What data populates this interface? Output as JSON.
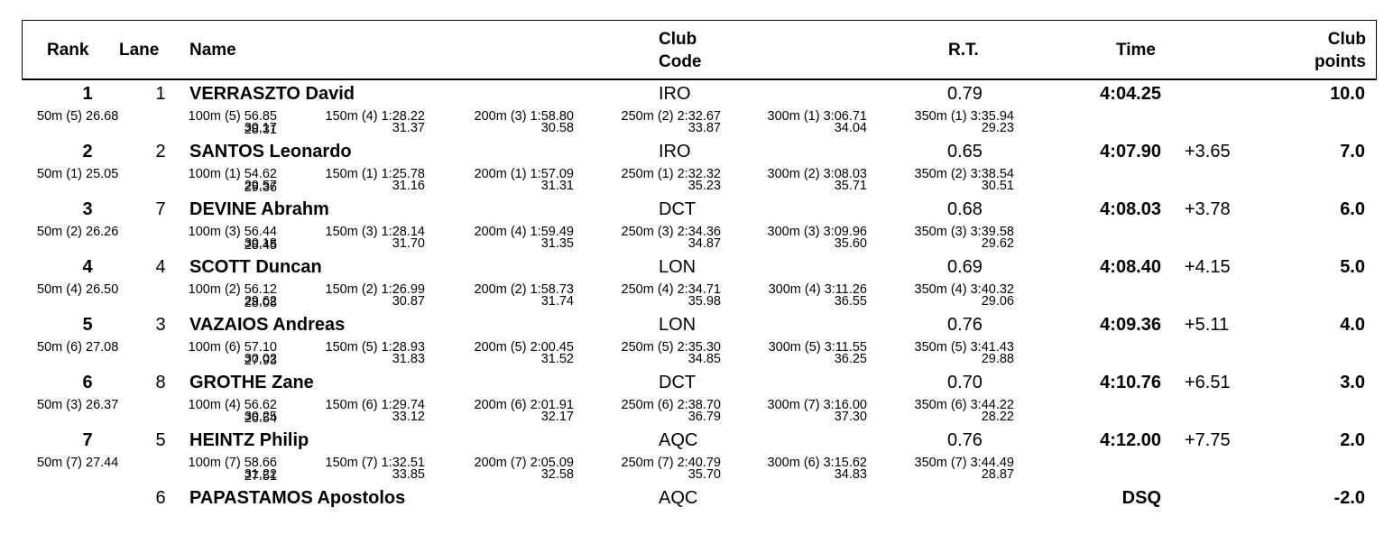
{
  "headers": {
    "rank": "Rank",
    "lane": "Lane",
    "name": "Name",
    "club_line1": "Club",
    "club_line2": "Code",
    "rt": "R.T.",
    "time": "Time",
    "points_line1": "Club",
    "points_line2": "points"
  },
  "results": [
    {
      "rank": "1",
      "lane": "1",
      "name": "VERRASZTO David",
      "club": "IRO",
      "rt": "0.79",
      "time": "4:04.25",
      "behind": "",
      "points": "10.0",
      "splits": [
        {
          "label": "50m",
          "place": "(5)",
          "cum": "26.68",
          "lap": ""
        },
        {
          "label": "100m",
          "place": "(5)",
          "cum": "56.85",
          "lap": "30.17"
        },
        {
          "label": "150m",
          "place": "(4)",
          "cum": "1:28.22",
          "lap": "31.37"
        },
        {
          "label": "200m",
          "place": "(3)",
          "cum": "1:58.80",
          "lap": "30.58"
        },
        {
          "label": "250m",
          "place": "(2)",
          "cum": "2:32.67",
          "lap": "33.87"
        },
        {
          "label": "300m",
          "place": "(1)",
          "cum": "3:06.71",
          "lap": "34.04"
        },
        {
          "label": "350m",
          "place": "(1)",
          "cum": "3:35.94",
          "lap": "29.23"
        }
      ],
      "final_lap": "28.31"
    },
    {
      "rank": "2",
      "lane": "2",
      "name": "SANTOS Leonardo",
      "club": "IRO",
      "rt": "0.65",
      "time": "4:07.90",
      "behind": "+3.65",
      "points": "7.0",
      "splits": [
        {
          "label": "50m",
          "place": "(1)",
          "cum": "25.05",
          "lap": ""
        },
        {
          "label": "100m",
          "place": "(1)",
          "cum": "54.62",
          "lap": "29.57"
        },
        {
          "label": "150m",
          "place": "(1)",
          "cum": "1:25.78",
          "lap": "31.16"
        },
        {
          "label": "200m",
          "place": "(1)",
          "cum": "1:57.09",
          "lap": "31.31"
        },
        {
          "label": "250m",
          "place": "(1)",
          "cum": "2:32.32",
          "lap": "35.23"
        },
        {
          "label": "300m",
          "place": "(2)",
          "cum": "3:08.03",
          "lap": "35.71"
        },
        {
          "label": "350m",
          "place": "(2)",
          "cum": "3:38.54",
          "lap": "30.51"
        }
      ],
      "final_lap": "29.36"
    },
    {
      "rank": "3",
      "lane": "7",
      "name": "DEVINE Abrahm",
      "club": "DCT",
      "rt": "0.68",
      "time": "4:08.03",
      "behind": "+3.78",
      "points": "6.0",
      "splits": [
        {
          "label": "50m",
          "place": "(2)",
          "cum": "26.26",
          "lap": ""
        },
        {
          "label": "100m",
          "place": "(3)",
          "cum": "56.44",
          "lap": "30.18"
        },
        {
          "label": "150m",
          "place": "(3)",
          "cum": "1:28.14",
          "lap": "31.70"
        },
        {
          "label": "200m",
          "place": "(4)",
          "cum": "1:59.49",
          "lap": "31.35"
        },
        {
          "label": "250m",
          "place": "(3)",
          "cum": "2:34.36",
          "lap": "34.87"
        },
        {
          "label": "300m",
          "place": "(3)",
          "cum": "3:09.96",
          "lap": "35.60"
        },
        {
          "label": "350m",
          "place": "(3)",
          "cum": "3:39.58",
          "lap": "29.62"
        }
      ],
      "final_lap": "28.45"
    },
    {
      "rank": "4",
      "lane": "4",
      "name": "SCOTT Duncan",
      "club": "LON",
      "rt": "0.69",
      "time": "4:08.40",
      "behind": "+4.15",
      "points": "5.0",
      "splits": [
        {
          "label": "50m",
          "place": "(4)",
          "cum": "26.50",
          "lap": ""
        },
        {
          "label": "100m",
          "place": "(2)",
          "cum": "56.12",
          "lap": "29.62"
        },
        {
          "label": "150m",
          "place": "(2)",
          "cum": "1:26.99",
          "lap": "30.87"
        },
        {
          "label": "200m",
          "place": "(2)",
          "cum": "1:58.73",
          "lap": "31.74"
        },
        {
          "label": "250m",
          "place": "(4)",
          "cum": "2:34.71",
          "lap": "35.98"
        },
        {
          "label": "300m",
          "place": "(4)",
          "cum": "3:11.26",
          "lap": "36.55"
        },
        {
          "label": "350m",
          "place": "(4)",
          "cum": "3:40.32",
          "lap": "29.06"
        }
      ],
      "final_lap": "28.08"
    },
    {
      "rank": "5",
      "lane": "3",
      "name": "VAZAIOS Andreas",
      "club": "LON",
      "rt": "0.76",
      "time": "4:09.36",
      "behind": "+5.11",
      "points": "4.0",
      "splits": [
        {
          "label": "50m",
          "place": "(6)",
          "cum": "27.08",
          "lap": ""
        },
        {
          "label": "100m",
          "place": "(6)",
          "cum": "57.10",
          "lap": "30.02"
        },
        {
          "label": "150m",
          "place": "(5)",
          "cum": "1:28.93",
          "lap": "31.83"
        },
        {
          "label": "200m",
          "place": "(5)",
          "cum": "2:00.45",
          "lap": "31.52"
        },
        {
          "label": "250m",
          "place": "(5)",
          "cum": "2:35.30",
          "lap": "34.85"
        },
        {
          "label": "300m",
          "place": "(5)",
          "cum": "3:11.55",
          "lap": "36.25"
        },
        {
          "label": "350m",
          "place": "(5)",
          "cum": "3:41.43",
          "lap": "29.88"
        }
      ],
      "final_lap": "27.93"
    },
    {
      "rank": "6",
      "lane": "8",
      "name": "GROTHE Zane",
      "club": "DCT",
      "rt": "0.70",
      "time": "4:10.76",
      "behind": "+6.51",
      "points": "3.0",
      "splits": [
        {
          "label": "50m",
          "place": "(3)",
          "cum": "26.37",
          "lap": ""
        },
        {
          "label": "100m",
          "place": "(4)",
          "cum": "56.62",
          "lap": "30.25"
        },
        {
          "label": "150m",
          "place": "(6)",
          "cum": "1:29.74",
          "lap": "33.12"
        },
        {
          "label": "200m",
          "place": "(6)",
          "cum": "2:01.91",
          "lap": "32.17"
        },
        {
          "label": "250m",
          "place": "(6)",
          "cum": "2:38.70",
          "lap": "36.79"
        },
        {
          "label": "300m",
          "place": "(7)",
          "cum": "3:16.00",
          "lap": "37.30"
        },
        {
          "label": "350m",
          "place": "(6)",
          "cum": "3:44.22",
          "lap": "28.22"
        }
      ],
      "final_lap": "26.54"
    },
    {
      "rank": "7",
      "lane": "5",
      "name": "HEINTZ Philip",
      "club": "AQC",
      "rt": "0.76",
      "time": "4:12.00",
      "behind": "+7.75",
      "points": "2.0",
      "splits": [
        {
          "label": "50m",
          "place": "(7)",
          "cum": "27.44",
          "lap": ""
        },
        {
          "label": "100m",
          "place": "(7)",
          "cum": "58.66",
          "lap": "31.22"
        },
        {
          "label": "150m",
          "place": "(7)",
          "cum": "1:32.51",
          "lap": "33.85"
        },
        {
          "label": "200m",
          "place": "(7)",
          "cum": "2:05.09",
          "lap": "32.58"
        },
        {
          "label": "250m",
          "place": "(7)",
          "cum": "2:40.79",
          "lap": "35.70"
        },
        {
          "label": "300m",
          "place": "(6)",
          "cum": "3:15.62",
          "lap": "34.83"
        },
        {
          "label": "350m",
          "place": "(7)",
          "cum": "3:44.49",
          "lap": "28.87"
        }
      ],
      "final_lap": "27.51"
    },
    {
      "rank": "",
      "lane": "6",
      "name": "PAPASTAMOS Apostolos",
      "club": "AQC",
      "rt": "",
      "time": "DSQ",
      "behind": "",
      "points": "-2.0",
      "splits": [],
      "final_lap": ""
    }
  ]
}
